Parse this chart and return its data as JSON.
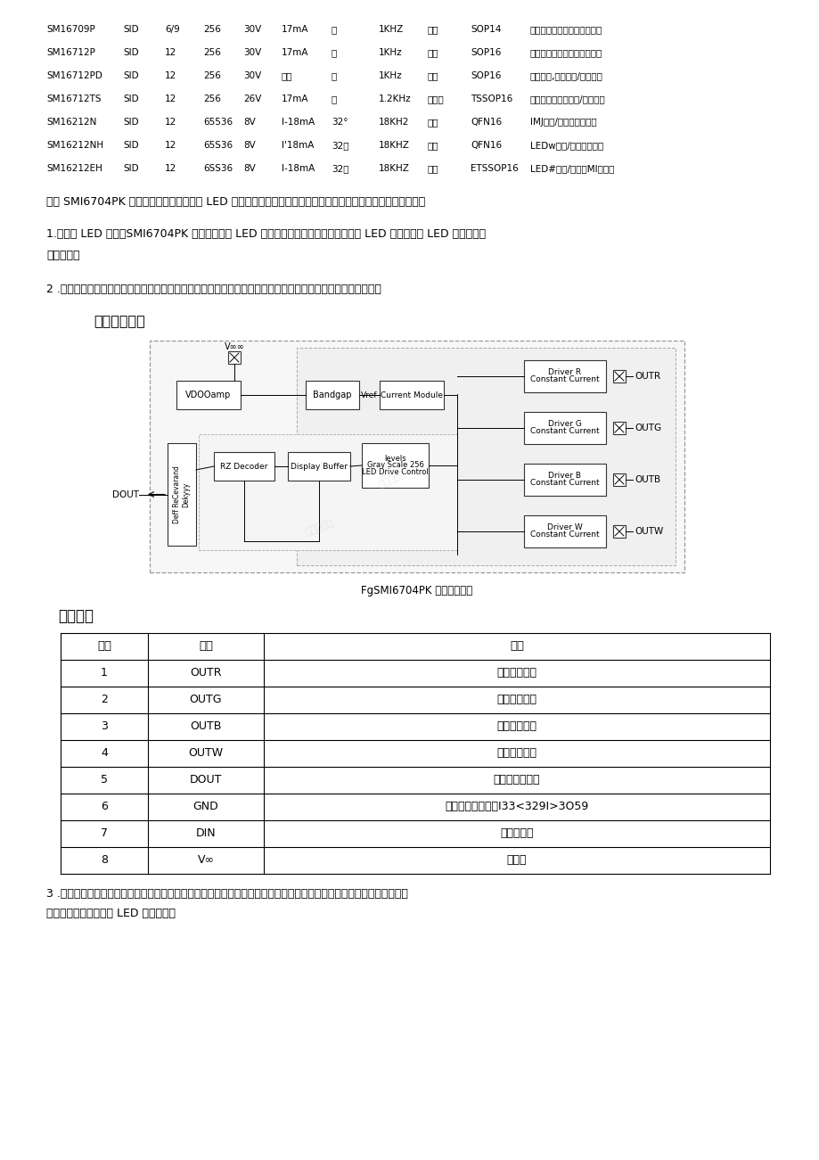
{
  "bg_color": "#ffffff",
  "table_rows": [
    [
      "SM16709P",
      "SID",
      "6/9",
      "256",
      "30V",
      "17mA",
      "无",
      "1KHZ",
      "白光",
      "SOP14",
      "装饰照明、建筑外知情景照明"
    ],
    [
      "SM16712P",
      "SID",
      "12",
      "256",
      "30V",
      "17mA",
      "无",
      "1KHz",
      "白光",
      "SOP16",
      "装饰照明、建筑外切情景照明"
    ],
    [
      "SM16712PD",
      "SID",
      "12",
      "256",
      "30V",
      "恒压",
      "无",
      "1KHz",
      "白光",
      "SOP16",
      "装饰照明,建筑外皮/情景照明"
    ],
    [
      "SM16712TS",
      "SID",
      "12",
      "256",
      "26V",
      "17mA",
      "无",
      "1.2KHz",
      "亮白光",
      "TSSOP16",
      "装饰照明、建筑外觉/情景照明"
    ],
    [
      "SM16212N",
      "SID",
      "12",
      "65536",
      "8V",
      "I-18mA",
      "32°",
      "18KH2",
      "关闭",
      "QFN16",
      "IMJ条屏/透明屏燃明灯具"
    ],
    [
      "SM16212NH",
      "SID",
      "12",
      "65S36",
      "8V",
      "I'18mA",
      "32级",
      "18KHZ",
      "关闭",
      "QFN16",
      "LEDw条屏/透明屏明灯其"
    ],
    [
      "SM16212EH",
      "SID",
      "12",
      "6SS36",
      "8V",
      "I-18mA",
      "32级",
      "18KHZ",
      "关闭",
      "ETSSOP16",
      "LED#条屏/透明屏MI明灯具"
    ]
  ],
  "para1": "其中 SMI6704PK 就是一款非常出色的多路 LED 驱动芒片，具有许多优点。以下是该芒片的一些主要特点和功能：",
  "para2": "1.四通道 LED 驱动：SMI6704PK 是一款四通道 LED 驱动控制芒片，可以同时控制四个 LED 灯，提高了 LED 控制的效率",
  "para2b": "和便利性。",
  "para3": "2 .单线传输：该芒片采用单线传输，减少了线路的更杂性，降低了成本，同时也提高了系统的稳定性和可靠性。",
  "section_title": "内部功能框图",
  "fig_caption": "FgSMI6704PK 内部功能框图",
  "pin_title": "管脚说明",
  "pin_headers": [
    "编号",
    "名称",
    "功能"
  ],
  "pin_rows": [
    [
      "1",
      "OUTR",
      "恒流物动端口"
    ],
    [
      "2",
      "OUTG",
      "恒波驱动端口"
    ],
    [
      "3",
      "OUTB",
      "恒流驱动端口"
    ],
    [
      "4",
      "OUTW",
      "恒旋驱动端口"
    ],
    [
      "5",
      "DOUT",
      "级联信号装出端"
    ],
    [
      "6",
      "GND",
      "接地战技术支持：I33<329I>3O59"
    ],
    [
      "7",
      "DIN",
      "信号输入端"
    ],
    [
      "8",
      "V∞",
      "电源端"
    ]
  ],
  "para4": "3 .单极性归零码数据协议：该芒片采用单极性归零码数据协议，这种协议具有数据传输速度快、抗干扰能力强、传输距离",
  "para4b": "远等优点，非常适合于 LED 驱动控制。"
}
